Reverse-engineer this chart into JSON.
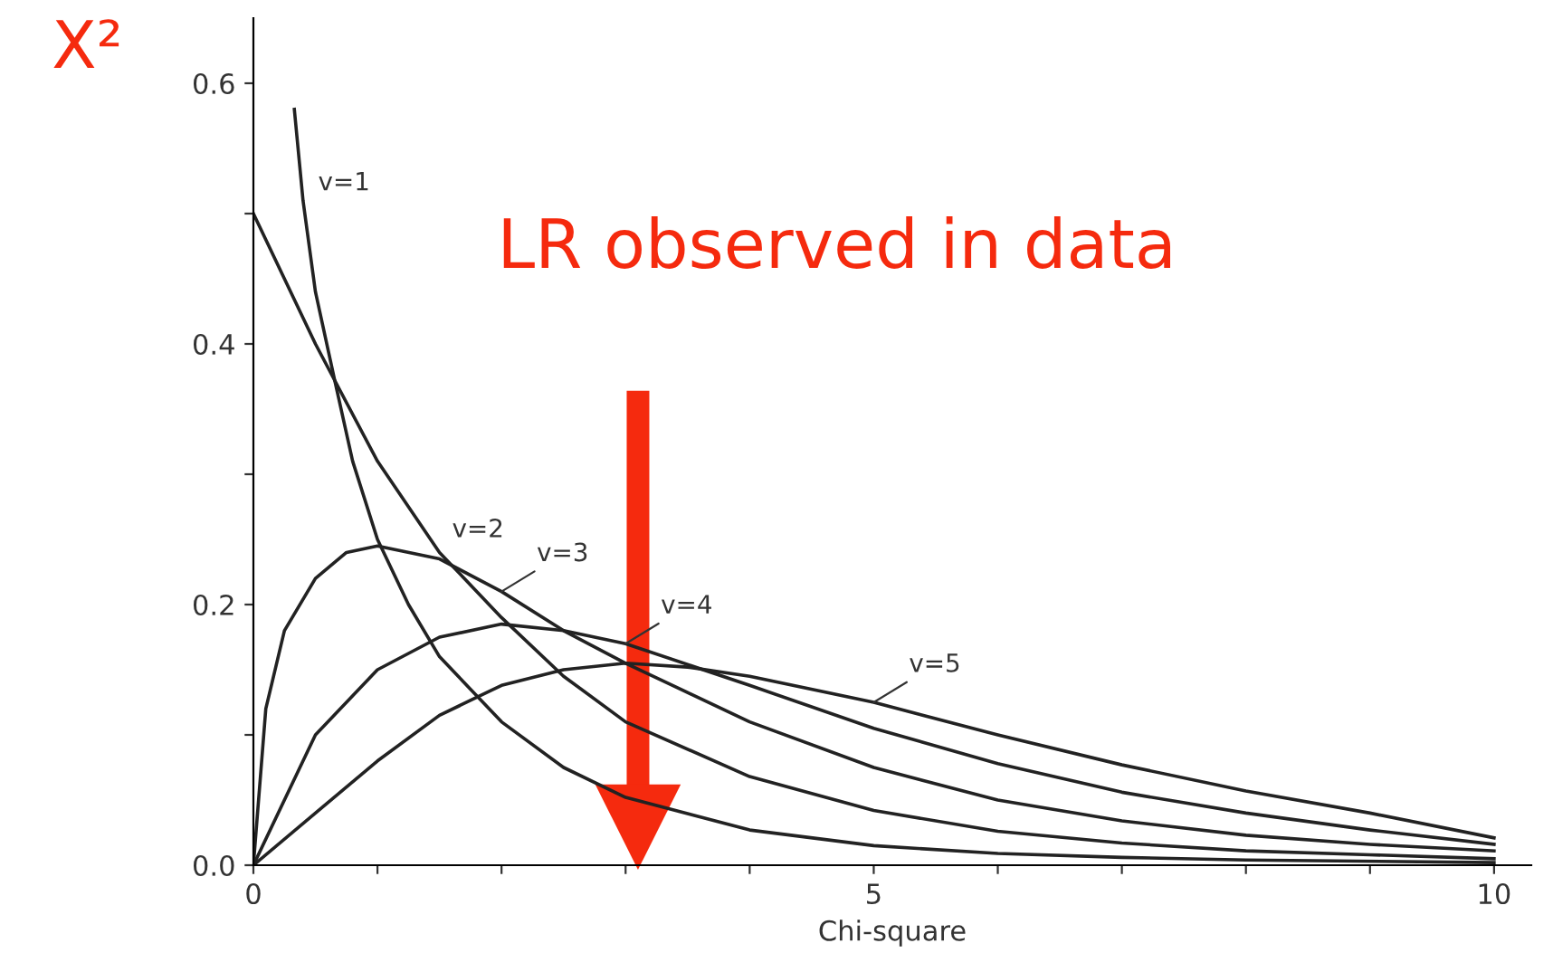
{
  "chart_data": {
    "type": "line",
    "xlabel": "Chi-square",
    "ylabel": "Χ²",
    "xlim": [
      0,
      10.3
    ],
    "ylim": [
      0,
      0.65
    ],
    "xticks": [
      0,
      {
        "value": 1,
        "label": null
      },
      {
        "value": 2,
        "label": null
      },
      {
        "value": 3,
        "label": null
      },
      {
        "value": 4,
        "label": null
      },
      5,
      {
        "value": 6,
        "label": null
      },
      {
        "value": 7,
        "label": null
      },
      {
        "value": 8,
        "label": null
      },
      {
        "value": 9,
        "label": null
      },
      10
    ],
    "yticks": [
      {
        "value": 0,
        "label": "0.0"
      },
      {
        "value": 0.1,
        "label": null
      },
      {
        "value": 0.2,
        "label": "0.2"
      },
      {
        "value": 0.3,
        "label": null
      },
      {
        "value": 0.4,
        "label": "0.4"
      },
      {
        "value": 0.5,
        "label": null
      },
      {
        "value": 0.6,
        "label": "0.6"
      }
    ],
    "grid": false,
    "legend": false,
    "marker": "none",
    "line_style": "solid",
    "series": [
      {
        "name": "v=1",
        "color": "#222222",
        "x": [
          0.33,
          0.4,
          0.5,
          0.66,
          0.8,
          1,
          1.25,
          1.5,
          2,
          2.5,
          3,
          4,
          5,
          6,
          7,
          8,
          10
        ],
        "values": [
          0.58,
          0.51,
          0.44,
          0.37,
          0.31,
          0.25,
          0.2,
          0.16,
          0.11,
          0.075,
          0.052,
          0.027,
          0.015,
          0.009,
          0.006,
          0.004,
          0.002
        ]
      },
      {
        "name": "v=2",
        "color": "#222222",
        "x": [
          0,
          0.5,
          1,
          1.5,
          2,
          2.5,
          3,
          4,
          5,
          6,
          7,
          8,
          9,
          10
        ],
        "values": [
          0.5,
          0.4,
          0.31,
          0.24,
          0.19,
          0.145,
          0.11,
          0.068,
          0.042,
          0.026,
          0.017,
          0.011,
          0.008,
          0.005
        ]
      },
      {
        "name": "v=3",
        "color": "#222222",
        "x": [
          0,
          0.1,
          0.25,
          0.5,
          0.75,
          1,
          1.5,
          2,
          2.5,
          3,
          4,
          5,
          6,
          7,
          8,
          9,
          10
        ],
        "values": [
          0,
          0.12,
          0.18,
          0.22,
          0.24,
          0.245,
          0.235,
          0.21,
          0.18,
          0.155,
          0.11,
          0.075,
          0.05,
          0.034,
          0.023,
          0.016,
          0.011
        ]
      },
      {
        "name": "v=4",
        "color": "#222222",
        "x": [
          0,
          0.5,
          1,
          1.5,
          2,
          2.5,
          3,
          4,
          5,
          6,
          7,
          8,
          9,
          10
        ],
        "values": [
          0,
          0.1,
          0.15,
          0.175,
          0.185,
          0.18,
          0.17,
          0.138,
          0.105,
          0.078,
          0.056,
          0.04,
          0.027,
          0.016
        ]
      },
      {
        "name": "v=5",
        "color": "#222222",
        "x": [
          0,
          0.5,
          1,
          1.5,
          2,
          2.5,
          3,
          3.5,
          4,
          5,
          6,
          7,
          8,
          9,
          10
        ],
        "values": [
          0,
          0.04,
          0.08,
          0.115,
          0.138,
          0.15,
          0.155,
          0.152,
          0.145,
          0.125,
          0.1,
          0.077,
          0.057,
          0.04,
          0.021
        ]
      }
    ],
    "ref_lines": [
      {
        "axis": "x",
        "value": 3.1,
        "label": "LR observed in data",
        "color": "#f52a0e"
      }
    ]
  }
}
